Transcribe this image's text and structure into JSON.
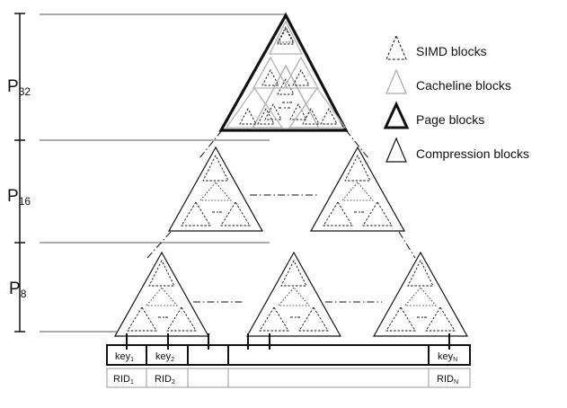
{
  "levels": {
    "p32": {
      "base": "P",
      "sub": "32"
    },
    "p16": {
      "base": "P",
      "sub": "16"
    },
    "p8": {
      "base": "P",
      "sub": "8"
    }
  },
  "legend": [
    {
      "id": "simd",
      "label": "SIMD blocks"
    },
    {
      "id": "cacheline",
      "label": "Cacheline blocks"
    },
    {
      "id": "page",
      "label": "Page blocks"
    },
    {
      "id": "compression",
      "label": "Compression blocks"
    }
  ],
  "keys": [
    {
      "base": "key",
      "sub": "1"
    },
    {
      "base": "key",
      "sub": "2"
    },
    {
      "base": "key",
      "sub": "N"
    }
  ],
  "rids": [
    {
      "base": "RID",
      "sub": "1"
    },
    {
      "base": "RID",
      "sub": "2"
    },
    {
      "base": "RID",
      "sub": "N"
    }
  ],
  "ellipsis": "-·-",
  "colors": {
    "cacheline_gray": "#b3b3b3",
    "stroke": "#111111"
  }
}
